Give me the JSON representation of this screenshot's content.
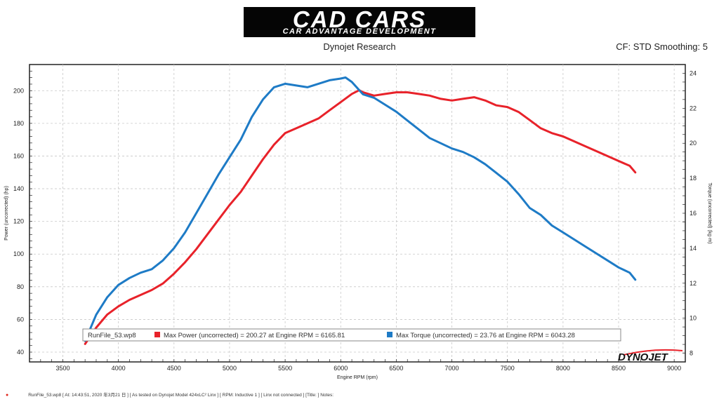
{
  "header": {
    "logo_brand": "CAD CARS",
    "logo_tagline": "CAR ADVANTAGE DEVELOPMENT",
    "subtitle": "Dynojet Research",
    "cf_label": "CF: STD Smoothing: 5"
  },
  "watermark": "DYNOJET",
  "footer": {
    "text": "RunFile_53.wp8  [  At:  14:43:51,  2020 年3月21 日  ]  [ As tested on Dynojet Model 424xLC² Linx ]  [ RPM: Inductive 1 ]  [ Linx not connected ]  [Title:  ]   Notes:"
  },
  "colors": {
    "power": "#e8222a",
    "torque": "#1e7bc6",
    "grid": "#c8c8c8"
  },
  "chart_data": {
    "type": "line",
    "title": "Dynojet Research",
    "xlabel": "Engine RPM (rpm)",
    "ylabel_left": "Power (uncorrected) (hp)",
    "ylabel_right": "Torque (uncorrected) (kg·m)",
    "xlim": [
      3200,
      9100
    ],
    "ylim_left": [
      34,
      216
    ],
    "ylim_right": [
      7.5,
      24.5
    ],
    "x_ticks": [
      "3500",
      "4000",
      "4500",
      "5000",
      "5500",
      "6000",
      "6500",
      "7000",
      "7500",
      "8000",
      "8500",
      "9000"
    ],
    "y_left_ticks": [
      "40",
      "60",
      "80",
      "100",
      "120",
      "140",
      "160",
      "180",
      "200"
    ],
    "y_right_ticks": [
      "8",
      "10",
      "12",
      "14",
      "16",
      "18",
      "20",
      "22",
      "24"
    ],
    "grid": true,
    "legend": {
      "position": "bottom-center",
      "run": "RunFile_53.wp8",
      "entries": [
        "Max Power (uncorrected) = 200.27 at Engine RPM = 6165.81",
        "Max Torque (uncorrected) = 23.76 at Engine RPM = 6043.28"
      ]
    },
    "series": [
      {
        "name": "Power (uncorrected)",
        "axis": "left",
        "x": [
          3700,
          3800,
          3900,
          4000,
          4100,
          4200,
          4300,
          4400,
          4500,
          4600,
          4700,
          4800,
          4900,
          5000,
          5100,
          5200,
          5300,
          5400,
          5500,
          5600,
          5700,
          5800,
          5900,
          6000,
          6100,
          6166,
          6200,
          6300,
          6400,
          6500,
          6600,
          6700,
          6800,
          6900,
          7000,
          7100,
          7200,
          7300,
          7400,
          7500,
          7600,
          7700,
          7800,
          7900,
          8000,
          8100,
          8200,
          8300,
          8400,
          8500,
          8600,
          8650
        ],
        "y": [
          45,
          55,
          63,
          68,
          72,
          75,
          78,
          82,
          88,
          95,
          103,
          112,
          121,
          130,
          138,
          148,
          158,
          167,
          174,
          177,
          180,
          183,
          188,
          193,
          198,
          200.27,
          199,
          197,
          198,
          199,
          199,
          198,
          197,
          195,
          194,
          195,
          196,
          194,
          191,
          190,
          187,
          182,
          177,
          174,
          172,
          169,
          166,
          163,
          160,
          157,
          154,
          150
        ]
      },
      {
        "name": "Torque (uncorrected)",
        "axis": "right",
        "x": [
          3700,
          3800,
          3900,
          4000,
          4100,
          4200,
          4300,
          4400,
          4500,
          4600,
          4700,
          4800,
          4900,
          5000,
          5100,
          5200,
          5300,
          5400,
          5500,
          5600,
          5700,
          5800,
          5900,
          6000,
          6043,
          6100,
          6200,
          6300,
          6400,
          6500,
          6600,
          6700,
          6800,
          6900,
          7000,
          7100,
          7200,
          7300,
          7400,
          7500,
          7600,
          7700,
          7800,
          7900,
          8000,
          8100,
          8200,
          8300,
          8400,
          8500,
          8600,
          8650
        ],
        "y": [
          8.7,
          10.2,
          11.2,
          11.9,
          12.3,
          12.6,
          12.8,
          13.3,
          14.0,
          14.9,
          16.0,
          17.1,
          18.2,
          19.2,
          20.2,
          21.5,
          22.5,
          23.2,
          23.4,
          23.3,
          23.2,
          23.4,
          23.6,
          23.7,
          23.76,
          23.5,
          22.8,
          22.6,
          22.2,
          21.8,
          21.3,
          20.8,
          20.3,
          20.0,
          19.7,
          19.5,
          19.2,
          18.8,
          18.3,
          17.8,
          17.1,
          16.3,
          15.9,
          15.3,
          14.9,
          14.5,
          14.1,
          13.7,
          13.3,
          12.9,
          12.6,
          12.2
        ]
      }
    ]
  }
}
